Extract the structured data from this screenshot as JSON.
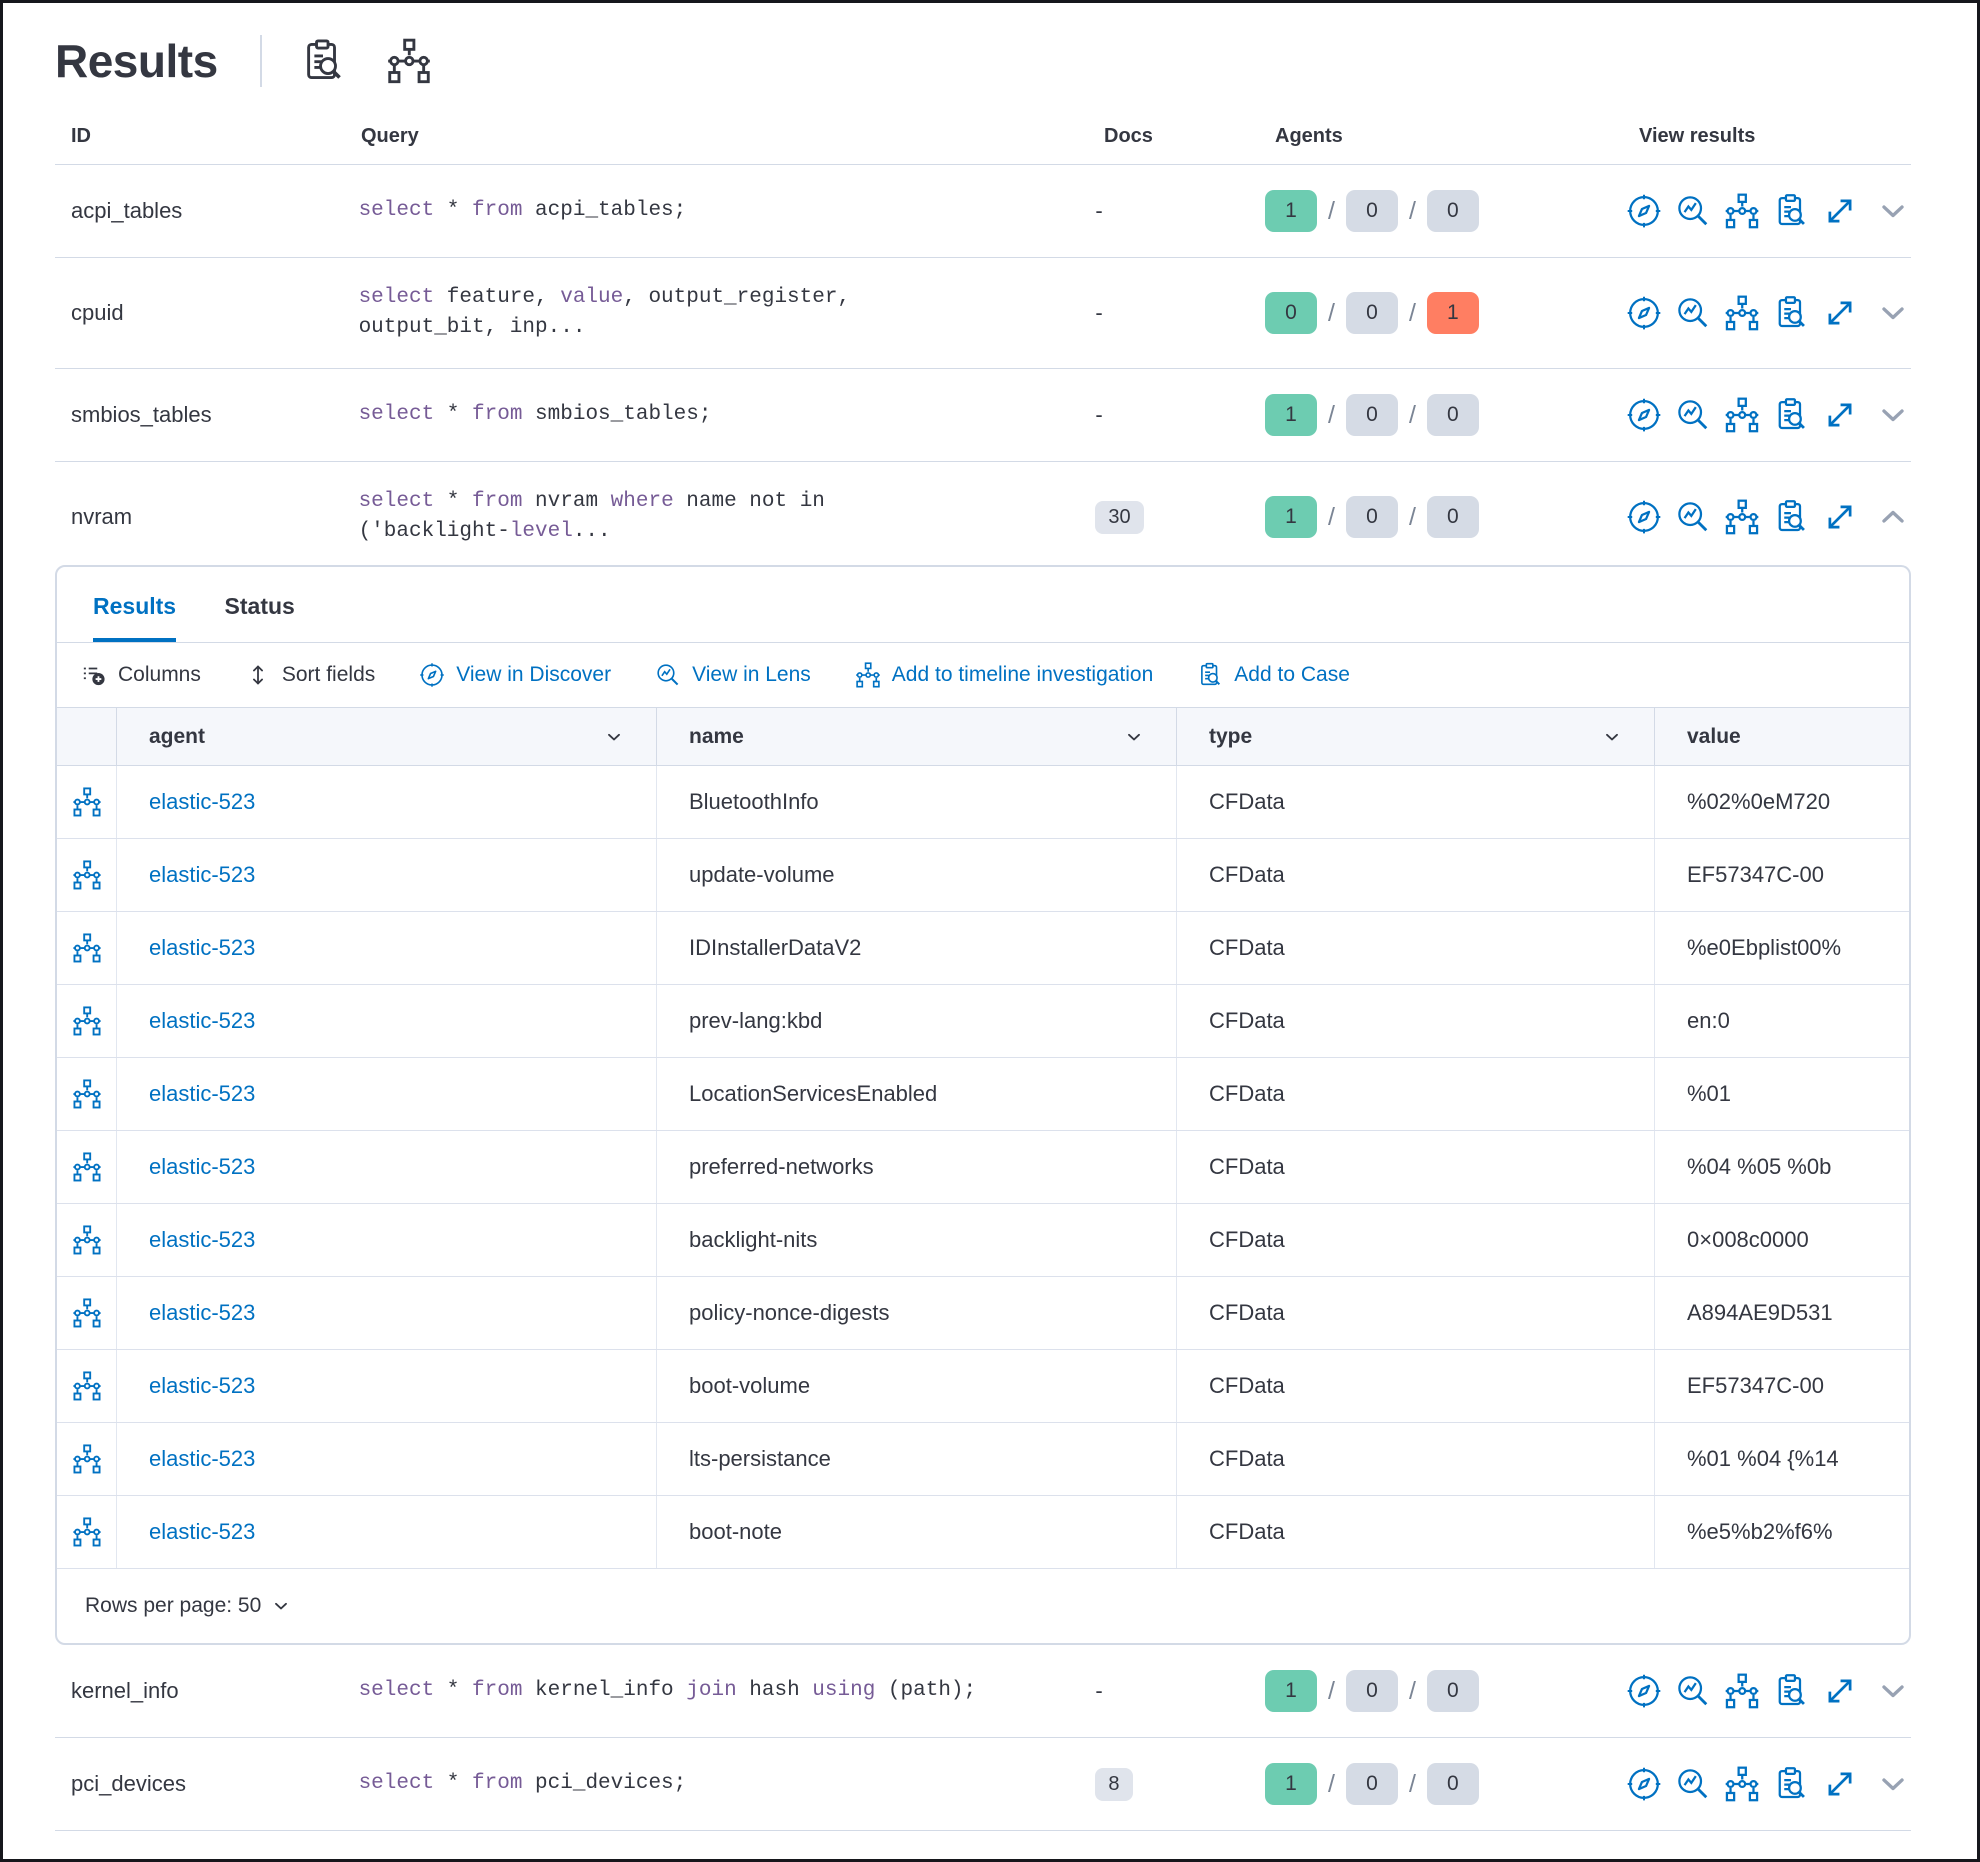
{
  "header": {
    "title": "Results",
    "icons": {
      "inspect": "clipboard-search-icon",
      "live_query": "timeline-network-icon"
    }
  },
  "columns": {
    "id": "ID",
    "query": "Query",
    "docs": "Docs",
    "agents": "Agents",
    "view": "View results"
  },
  "slash": "/",
  "rows": [
    {
      "id": "acpi_tables",
      "docs": "-",
      "agents": {
        "ok": "1",
        "pend": "0",
        "fail": "0"
      },
      "query": [
        [
          {
            "t": "select ",
            "k": 1
          },
          {
            "t": "* "
          },
          {
            "t": "from ",
            "k": 1
          },
          {
            "t": "acpi_tables;"
          }
        ]
      ]
    },
    {
      "id": "cpuid",
      "docs": "-",
      "agents": {
        "ok": "0",
        "pend": "0",
        "fail": "1"
      },
      "query": [
        [
          {
            "t": "select ",
            "k": 1
          },
          {
            "t": "feature, "
          },
          {
            "t": "value",
            "k": 1
          },
          {
            "t": ", output_register,"
          }
        ],
        [
          {
            "t": "output_bit, inp..."
          }
        ]
      ]
    },
    {
      "id": "smbios_tables",
      "docs": "-",
      "agents": {
        "ok": "1",
        "pend": "0",
        "fail": "0"
      },
      "query": [
        [
          {
            "t": "select ",
            "k": 1
          },
          {
            "t": "* "
          },
          {
            "t": "from ",
            "k": 1
          },
          {
            "t": "smbios_tables;"
          }
        ]
      ]
    },
    {
      "id": "nvram",
      "docs": "30",
      "agents": {
        "ok": "1",
        "pend": "0",
        "fail": "0"
      },
      "query": [
        [
          {
            "t": "select ",
            "k": 1
          },
          {
            "t": "* "
          },
          {
            "t": "from ",
            "k": 1
          },
          {
            "t": "nvram "
          },
          {
            "t": "where ",
            "k": 1
          },
          {
            "t": "name not in"
          }
        ],
        [
          {
            "t": "('backlight-"
          },
          {
            "t": "level",
            "k": 1
          },
          {
            "t": "..."
          }
        ]
      ]
    },
    {
      "id": "kernel_info",
      "docs": "-",
      "agents": {
        "ok": "1",
        "pend": "0",
        "fail": "0"
      },
      "query": [
        [
          {
            "t": "select ",
            "k": 1
          },
          {
            "t": "* "
          },
          {
            "t": "from ",
            "k": 1
          },
          {
            "t": "kernel_info "
          },
          {
            "t": "join ",
            "k": 1
          },
          {
            "t": "hash "
          },
          {
            "t": "using ",
            "k": 1
          },
          {
            "t": "(path);"
          }
        ]
      ]
    },
    {
      "id": "pci_devices",
      "docs": "8",
      "agents": {
        "ok": "1",
        "pend": "0",
        "fail": "0"
      },
      "query": [
        [
          {
            "t": "select ",
            "k": 1
          },
          {
            "t": "* "
          },
          {
            "t": "from ",
            "k": 1
          },
          {
            "t": "pci_devices;"
          }
        ]
      ]
    }
  ],
  "panel": {
    "tabs": [
      "Results",
      "Status"
    ],
    "active_tab": "Results",
    "toolbar": [
      {
        "label": "Columns"
      },
      {
        "label": "Sort fields"
      },
      {
        "label": "View in Discover"
      },
      {
        "label": "View in Lens"
      },
      {
        "label": "Add to timeline investigation"
      },
      {
        "label": "Add to Case"
      }
    ],
    "grid": {
      "columns": {
        "agent": "agent",
        "name": "name",
        "type": "type",
        "value": "value"
      },
      "rows": [
        {
          "agent": "elastic-523",
          "name": "BluetoothInfo",
          "type": "CFData",
          "value": "%02%0eM720"
        },
        {
          "agent": "elastic-523",
          "name": "update-volume",
          "type": "CFData",
          "value": "EF57347C-00"
        },
        {
          "agent": "elastic-523",
          "name": "IDInstallerDataV2",
          "type": "CFData",
          "value": "%e0Ebplist00%"
        },
        {
          "agent": "elastic-523",
          "name": "prev-lang:kbd",
          "type": "CFData",
          "value": "en:0"
        },
        {
          "agent": "elastic-523",
          "name": "LocationServicesEnabled",
          "type": "CFData",
          "value": "%01"
        },
        {
          "agent": "elastic-523",
          "name": "preferred-networks",
          "type": "CFData",
          "value": "%04 %05 %0b"
        },
        {
          "agent": "elastic-523",
          "name": "backlight-nits",
          "type": "CFData",
          "value": "0×008c0000"
        },
        {
          "agent": "elastic-523",
          "name": "policy-nonce-digests",
          "type": "CFData",
          "value": "A894AE9D531"
        },
        {
          "agent": "elastic-523",
          "name": "boot-volume",
          "type": "CFData",
          "value": "EF57347C-00"
        },
        {
          "agent": "elastic-523",
          "name": "lts-persistance",
          "type": "CFData",
          "value": "%01 %04 {%14"
        },
        {
          "agent": "elastic-523",
          "name": "boot-note",
          "type": "CFData",
          "value": "%e5%b2%f6%"
        }
      ]
    },
    "rows_per_page": "Rows per page: 50"
  },
  "colors": {
    "accent_blue": "#0071c2",
    "keyword_purple": "#765b96",
    "success_green": "#6dccb1",
    "fail_red": "#ff7e62",
    "neutral_badge": "#d5dbe5",
    "border": "#d3dae6",
    "text": "#343741"
  }
}
